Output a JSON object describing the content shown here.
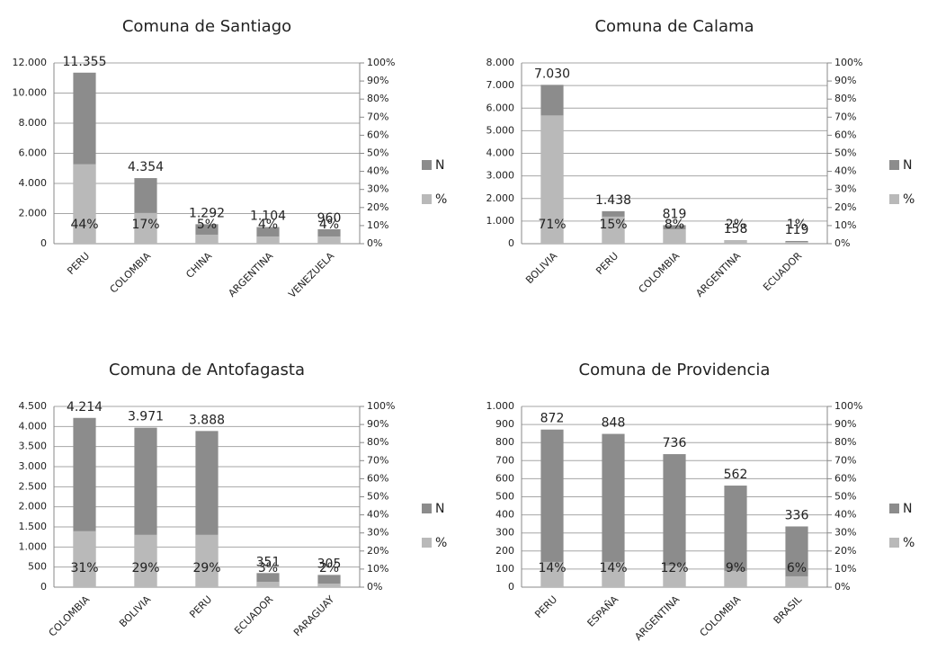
{
  "chart_data": [
    {
      "type": "bar",
      "title": "Comuna de Santiago",
      "categories": [
        "PERU",
        "COLOMBIA",
        "CHINA",
        "ARGENTINA",
        "VENEZUELA"
      ],
      "series": [
        {
          "name": "N",
          "color": "#8c8c8c",
          "values": [
            11355,
            4354,
            1292,
            1104,
            960
          ],
          "value_labels": [
            "11.355",
            "4.354",
            "1.292",
            "1.104",
            "960"
          ]
        },
        {
          "name": "%",
          "color": "#b9b9b9",
          "axis": "y2",
          "values": [
            44,
            17,
            5,
            4,
            4
          ],
          "value_labels": [
            "44%",
            "17%",
            "5%",
            "4%",
            "4%"
          ]
        }
      ],
      "ylim": [
        0,
        12000
      ],
      "yticks": [
        0,
        {
          "value": 2000,
          "label": "2.000"
        },
        {
          "value": 4000,
          "label": "4.000"
        },
        {
          "value": 6000,
          "label": "6.000"
        },
        {
          "value": 8000,
          "label": "8.000"
        },
        {
          "value": 10000,
          "label": "10.000"
        },
        {
          "value": 12000,
          "label": "12.000"
        }
      ],
      "y2lim": [
        0,
        100
      ],
      "y2ticks": [
        {
          "value": 0,
          "label": "0%"
        },
        {
          "value": 10,
          "label": "10%"
        },
        {
          "value": 20,
          "label": "20%"
        },
        {
          "value": 30,
          "label": "30%"
        },
        {
          "value": 40,
          "label": "40%"
        },
        {
          "value": 50,
          "label": "50%"
        },
        {
          "value": 60,
          "label": "60%"
        },
        {
          "value": 70,
          "label": "70%"
        },
        {
          "value": 80,
          "label": "80%"
        },
        {
          "value": 90,
          "label": "90%"
        },
        {
          "value": 100,
          "label": "100%"
        }
      ],
      "grid": true
    },
    {
      "type": "bar",
      "title": "Comuna de Calama",
      "categories": [
        "BOLIVIA",
        "PERU",
        "COLOMBIA",
        "ARGENTINA",
        "ECUADOR"
      ],
      "series": [
        {
          "name": "N",
          "color": "#8c8c8c",
          "values": [
            7030,
            1438,
            819,
            158,
            119
          ],
          "value_labels": [
            "7.030",
            "1.438",
            "819",
            "158",
            "119"
          ]
        },
        {
          "name": "%",
          "color": "#b9b9b9",
          "axis": "y2",
          "values": [
            71,
            15,
            8,
            2,
            1
          ],
          "value_labels": [
            "71%",
            "15%",
            "8%",
            "2%",
            "1%"
          ]
        }
      ],
      "ylim": [
        0,
        8000
      ],
      "yticks": [
        0,
        {
          "value": 1000,
          "label": "1.000"
        },
        {
          "value": 2000,
          "label": "2.000"
        },
        {
          "value": 3000,
          "label": "3.000"
        },
        {
          "value": 4000,
          "label": "4.000"
        },
        {
          "value": 5000,
          "label": "5.000"
        },
        {
          "value": 6000,
          "label": "6.000"
        },
        {
          "value": 7000,
          "label": "7.000"
        },
        {
          "value": 8000,
          "label": "8.000"
        }
      ],
      "y2lim": [
        0,
        100
      ],
      "y2ticks": [
        {
          "value": 0,
          "label": "0%"
        },
        {
          "value": 10,
          "label": "10%"
        },
        {
          "value": 20,
          "label": "20%"
        },
        {
          "value": 30,
          "label": "30%"
        },
        {
          "value": 40,
          "label": "40%"
        },
        {
          "value": 50,
          "label": "50%"
        },
        {
          "value": 60,
          "label": "60%"
        },
        {
          "value": 70,
          "label": "70%"
        },
        {
          "value": 80,
          "label": "80%"
        },
        {
          "value": 90,
          "label": "90%"
        },
        {
          "value": 100,
          "label": "100%"
        }
      ],
      "grid": true
    },
    {
      "type": "bar",
      "title": "Comuna de Antofagasta",
      "categories": [
        "COLOMBIA",
        "BOLIVIA",
        "PERU",
        "ECUADOR",
        "PARAGUAY"
      ],
      "series": [
        {
          "name": "N",
          "color": "#8c8c8c",
          "values": [
            4214,
            3971,
            3888,
            351,
            305
          ],
          "value_labels": [
            "4.214",
            "3.971",
            "3.888",
            "351",
            "305"
          ]
        },
        {
          "name": "%",
          "color": "#b9b9b9",
          "axis": "y2",
          "values": [
            31,
            29,
            29,
            3,
            2
          ],
          "value_labels": [
            "31%",
            "29%",
            "29%",
            "3%",
            "2%"
          ]
        }
      ],
      "ylim": [
        0,
        4500
      ],
      "yticks": [
        0,
        500,
        {
          "value": 1000,
          "label": "1.000"
        },
        {
          "value": 1500,
          "label": "1.500"
        },
        {
          "value": 2000,
          "label": "2.000"
        },
        {
          "value": 2500,
          "label": "2.500"
        },
        {
          "value": 3000,
          "label": "3.000"
        },
        {
          "value": 3500,
          "label": "3.500"
        },
        {
          "value": 4000,
          "label": "4.000"
        },
        {
          "value": 4500,
          "label": "4.500"
        }
      ],
      "y2lim": [
        0,
        100
      ],
      "y2ticks": [
        {
          "value": 0,
          "label": "0%"
        },
        {
          "value": 10,
          "label": "10%"
        },
        {
          "value": 20,
          "label": "20%"
        },
        {
          "value": 30,
          "label": "30%"
        },
        {
          "value": 40,
          "label": "40%"
        },
        {
          "value": 50,
          "label": "50%"
        },
        {
          "value": 60,
          "label": "60%"
        },
        {
          "value": 70,
          "label": "70%"
        },
        {
          "value": 80,
          "label": "80%"
        },
        {
          "value": 90,
          "label": "90%"
        },
        {
          "value": 100,
          "label": "100%"
        }
      ],
      "grid": true
    },
    {
      "type": "bar",
      "title": "Comuna de Providencia",
      "categories": [
        "PERU",
        "ESPAÑA",
        "ARGENTINA",
        "COLOMBIA",
        "BRASIL"
      ],
      "series": [
        {
          "name": "N",
          "color": "#8c8c8c",
          "values": [
            872,
            848,
            736,
            562,
            336
          ],
          "value_labels": [
            "872",
            "848",
            "736",
            "562",
            "336"
          ]
        },
        {
          "name": "%",
          "color": "#b9b9b9",
          "axis": "y2",
          "values": [
            14,
            14,
            12,
            9,
            6
          ],
          "value_labels": [
            "14%",
            "14%",
            "12%",
            "9%",
            "6%"
          ]
        }
      ],
      "ylim": [
        0,
        1000
      ],
      "yticks": [
        0,
        100,
        200,
        300,
        400,
        500,
        600,
        700,
        800,
        900,
        {
          "value": 1000,
          "label": "1.000"
        }
      ],
      "y2lim": [
        0,
        100
      ],
      "y2ticks": [
        {
          "value": 0,
          "label": "0%"
        },
        {
          "value": 10,
          "label": "10%"
        },
        {
          "value": 20,
          "label": "20%"
        },
        {
          "value": 30,
          "label": "30%"
        },
        {
          "value": 40,
          "label": "40%"
        },
        {
          "value": 50,
          "label": "50%"
        },
        {
          "value": 60,
          "label": "60%"
        },
        {
          "value": 70,
          "label": "70%"
        },
        {
          "value": 80,
          "label": "80%"
        },
        {
          "value": 90,
          "label": "90%"
        },
        {
          "value": 100,
          "label": "100%"
        }
      ],
      "grid": true
    }
  ]
}
